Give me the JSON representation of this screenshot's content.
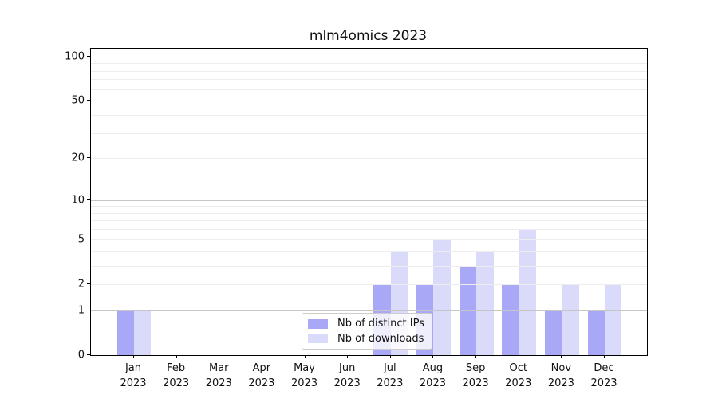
{
  "title": "mlm4omics 2023",
  "legend": {
    "items": [
      {
        "label": "Nb of distinct IPs",
        "color": "#a8a8f6"
      },
      {
        "label": "Nb of downloads",
        "color": "#dadafb"
      }
    ]
  },
  "chart_data": {
    "type": "bar",
    "title": "mlm4omics 2023",
    "xlabel": "",
    "ylabel": "",
    "categories": [
      {
        "month": "Jan",
        "year": "2023"
      },
      {
        "month": "Feb",
        "year": "2023"
      },
      {
        "month": "Mar",
        "year": "2023"
      },
      {
        "month": "Apr",
        "year": "2023"
      },
      {
        "month": "May",
        "year": "2023"
      },
      {
        "month": "Jun",
        "year": "2023"
      },
      {
        "month": "Jul",
        "year": "2023"
      },
      {
        "month": "Aug",
        "year": "2023"
      },
      {
        "month": "Sep",
        "year": "2023"
      },
      {
        "month": "Oct",
        "year": "2023"
      },
      {
        "month": "Nov",
        "year": "2023"
      },
      {
        "month": "Dec",
        "year": "2023"
      }
    ],
    "series": [
      {
        "name": "Nb of distinct IPs",
        "color": "#a8a8f6",
        "values": [
          1,
          0,
          0,
          0,
          0,
          0,
          2,
          2,
          3,
          2,
          1,
          1
        ]
      },
      {
        "name": "Nb of downloads",
        "color": "#dadafb",
        "values": [
          1,
          0,
          0,
          0,
          0,
          0,
          4,
          5,
          4,
          6,
          2,
          2
        ]
      }
    ],
    "yscale": "log1p",
    "ylim": [
      0,
      113
    ],
    "yticks": [
      0,
      1,
      2,
      5,
      10,
      20,
      50,
      100
    ],
    "grid_major": [
      1,
      10,
      100
    ],
    "grid_minor": [
      2,
      3,
      4,
      5,
      6,
      7,
      8,
      9,
      20,
      30,
      40,
      50,
      60,
      70,
      80,
      90
    ],
    "grid": "both",
    "legend_position": "lower center"
  }
}
